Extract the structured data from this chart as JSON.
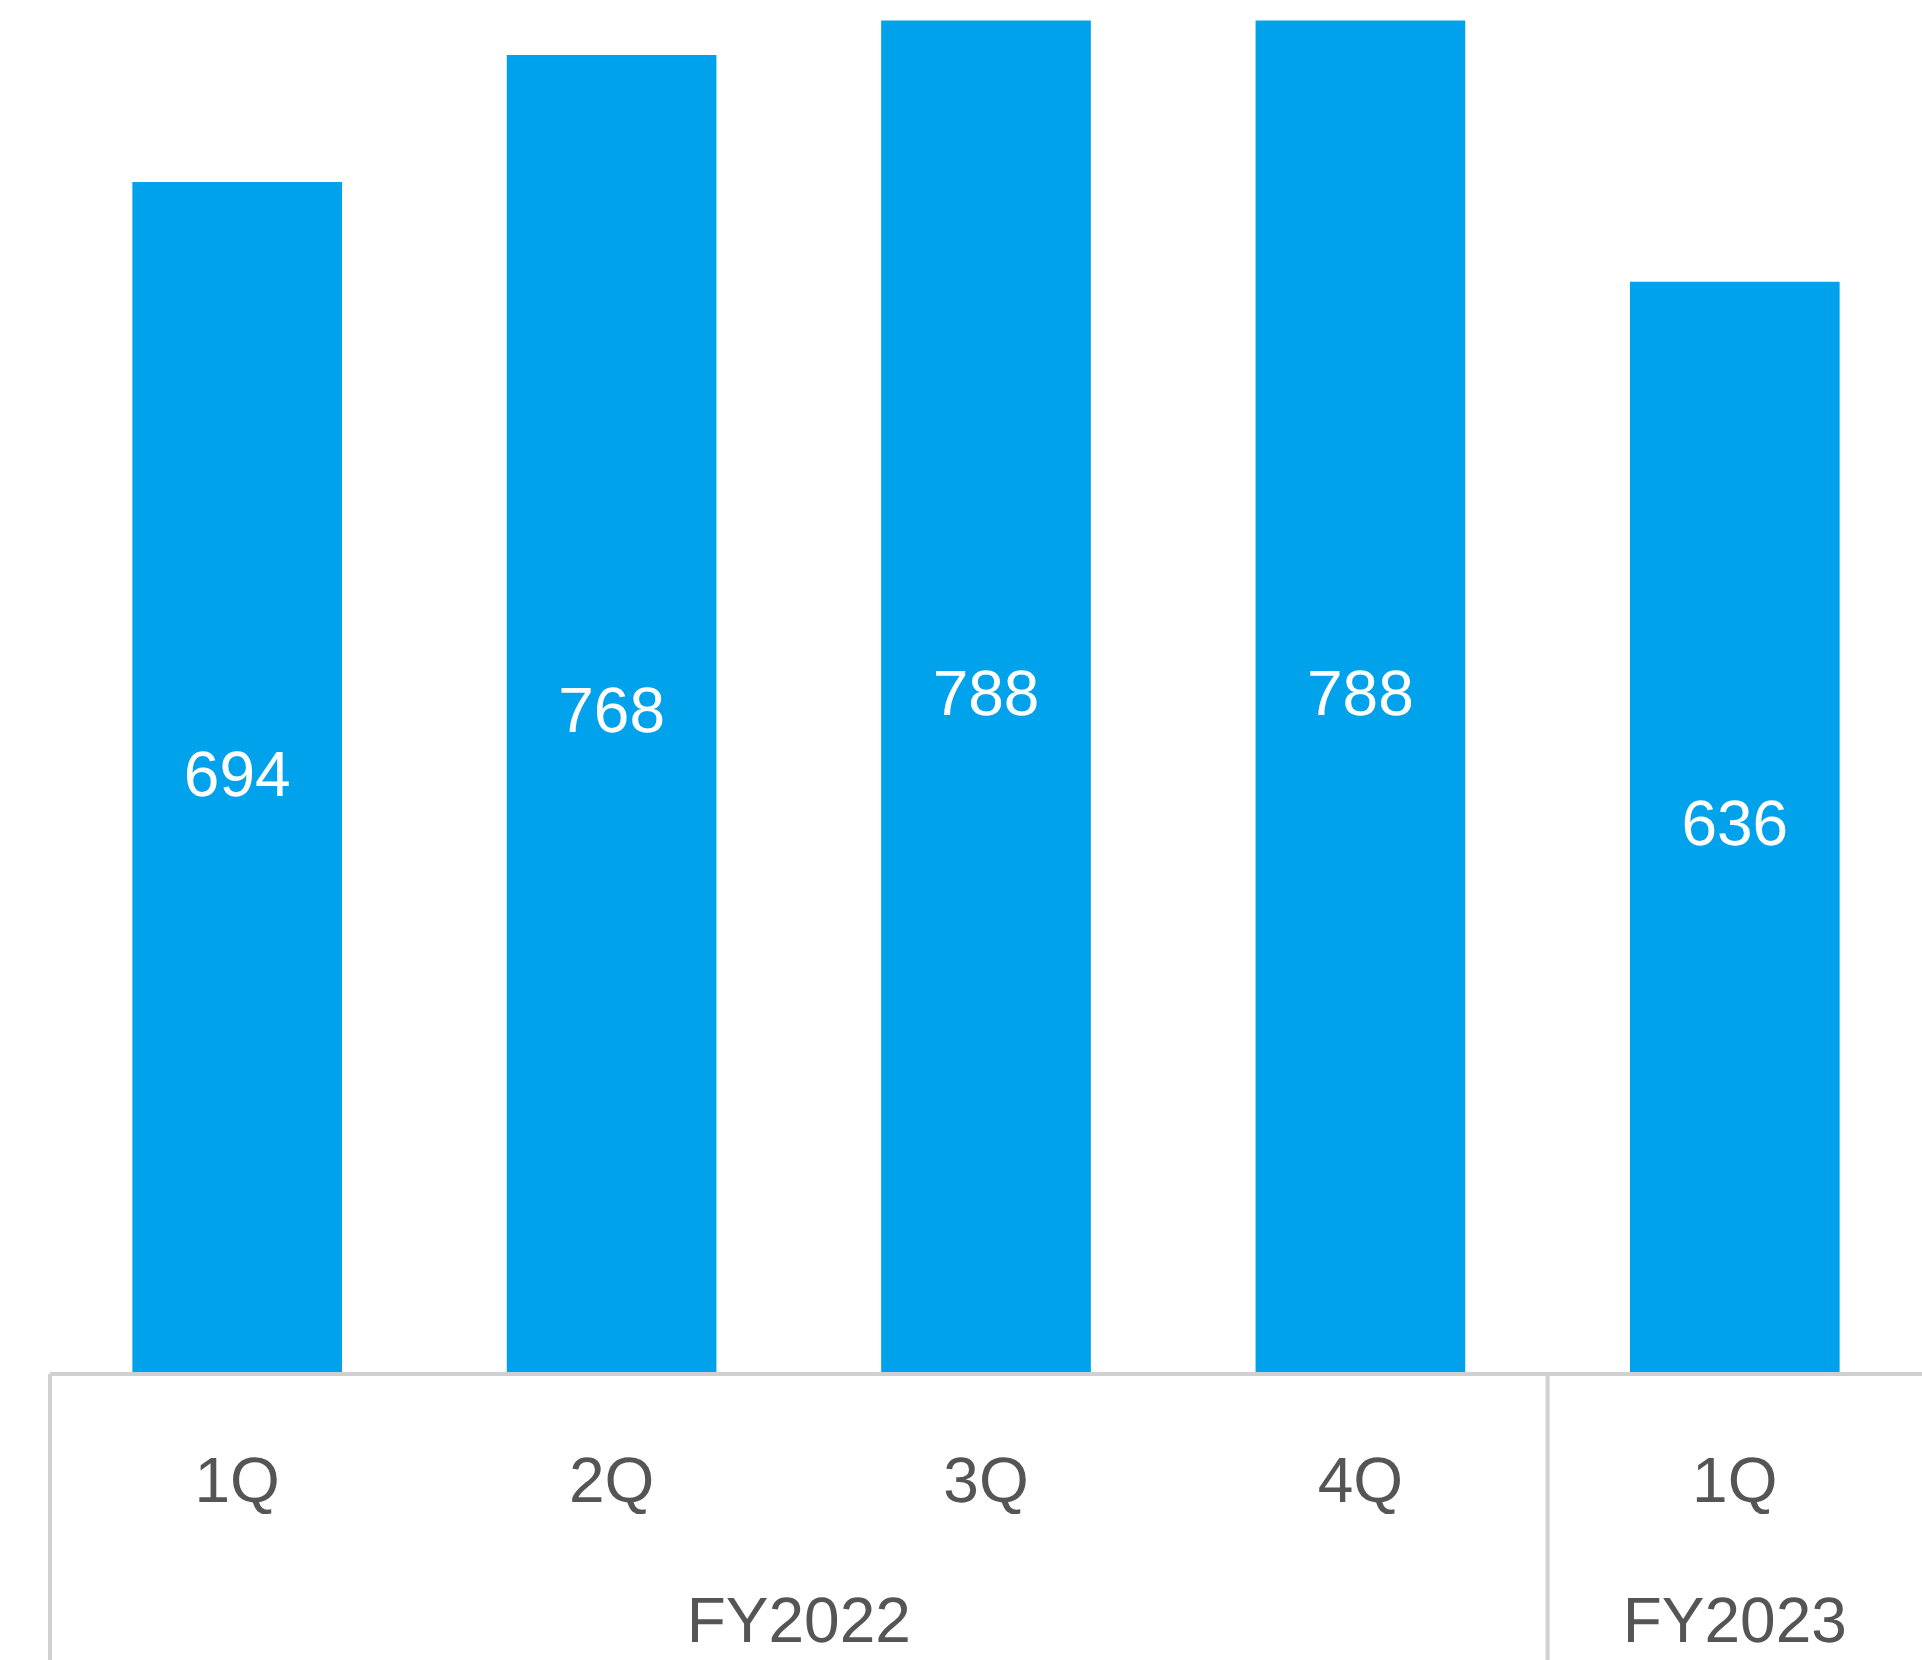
{
  "chart_data": {
    "type": "bar",
    "categories": [
      "1Q",
      "2Q",
      "3Q",
      "4Q",
      "1Q"
    ],
    "values": [
      694,
      768,
      788,
      788,
      636
    ],
    "color": "#00a3eb",
    "data_labels": true,
    "tick_labels": "x",
    "grid": false,
    "legend": false,
    "annotations": [
      "FY2022",
      "FY2023"
    ]
  }
}
